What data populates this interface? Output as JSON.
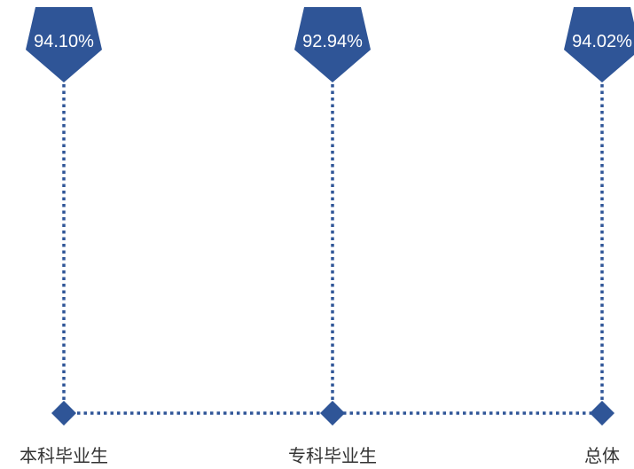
{
  "chart_data": {
    "type": "bar",
    "categories": [
      "本科毕业生",
      "专科毕业生",
      "总体"
    ],
    "values": [
      94.1,
      92.94,
      94.02
    ],
    "value_labels": [
      "94.10%",
      "92.94%",
      "94.02%"
    ],
    "title": "",
    "xlabel": "",
    "ylabel": "",
    "grid": false,
    "colors": {
      "marker": "#2F5597",
      "label_text": "#FFFFFF",
      "category_text": "#333333"
    }
  }
}
